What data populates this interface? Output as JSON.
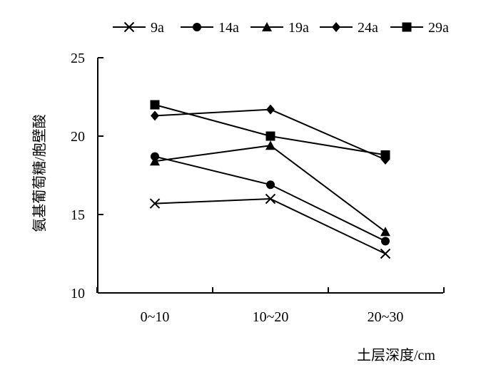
{
  "chart_data": {
    "type": "line",
    "categories": [
      "0~10",
      "10~20",
      "20~30"
    ],
    "series": [
      {
        "name": "9a",
        "marker": "x",
        "values": [
          15.7,
          16.0,
          12.5
        ]
      },
      {
        "name": "14a",
        "marker": "circle",
        "values": [
          18.7,
          16.9,
          13.3
        ]
      },
      {
        "name": "19a",
        "marker": "triangle",
        "values": [
          18.4,
          19.4,
          13.9
        ]
      },
      {
        "name": "24a",
        "marker": "diamond",
        "values": [
          21.3,
          21.7,
          18.5
        ]
      },
      {
        "name": "29a",
        "marker": "square",
        "values": [
          22.0,
          20.0,
          18.8
        ]
      }
    ],
    "xlabel": "土层深度/cm",
    "ylabel": "氨基葡萄糖/胞壁酸",
    "ylim": [
      10,
      25
    ],
    "yticks": [
      10,
      15,
      20,
      25
    ],
    "grid": false,
    "legend_position": "top",
    "color": "#000000"
  }
}
